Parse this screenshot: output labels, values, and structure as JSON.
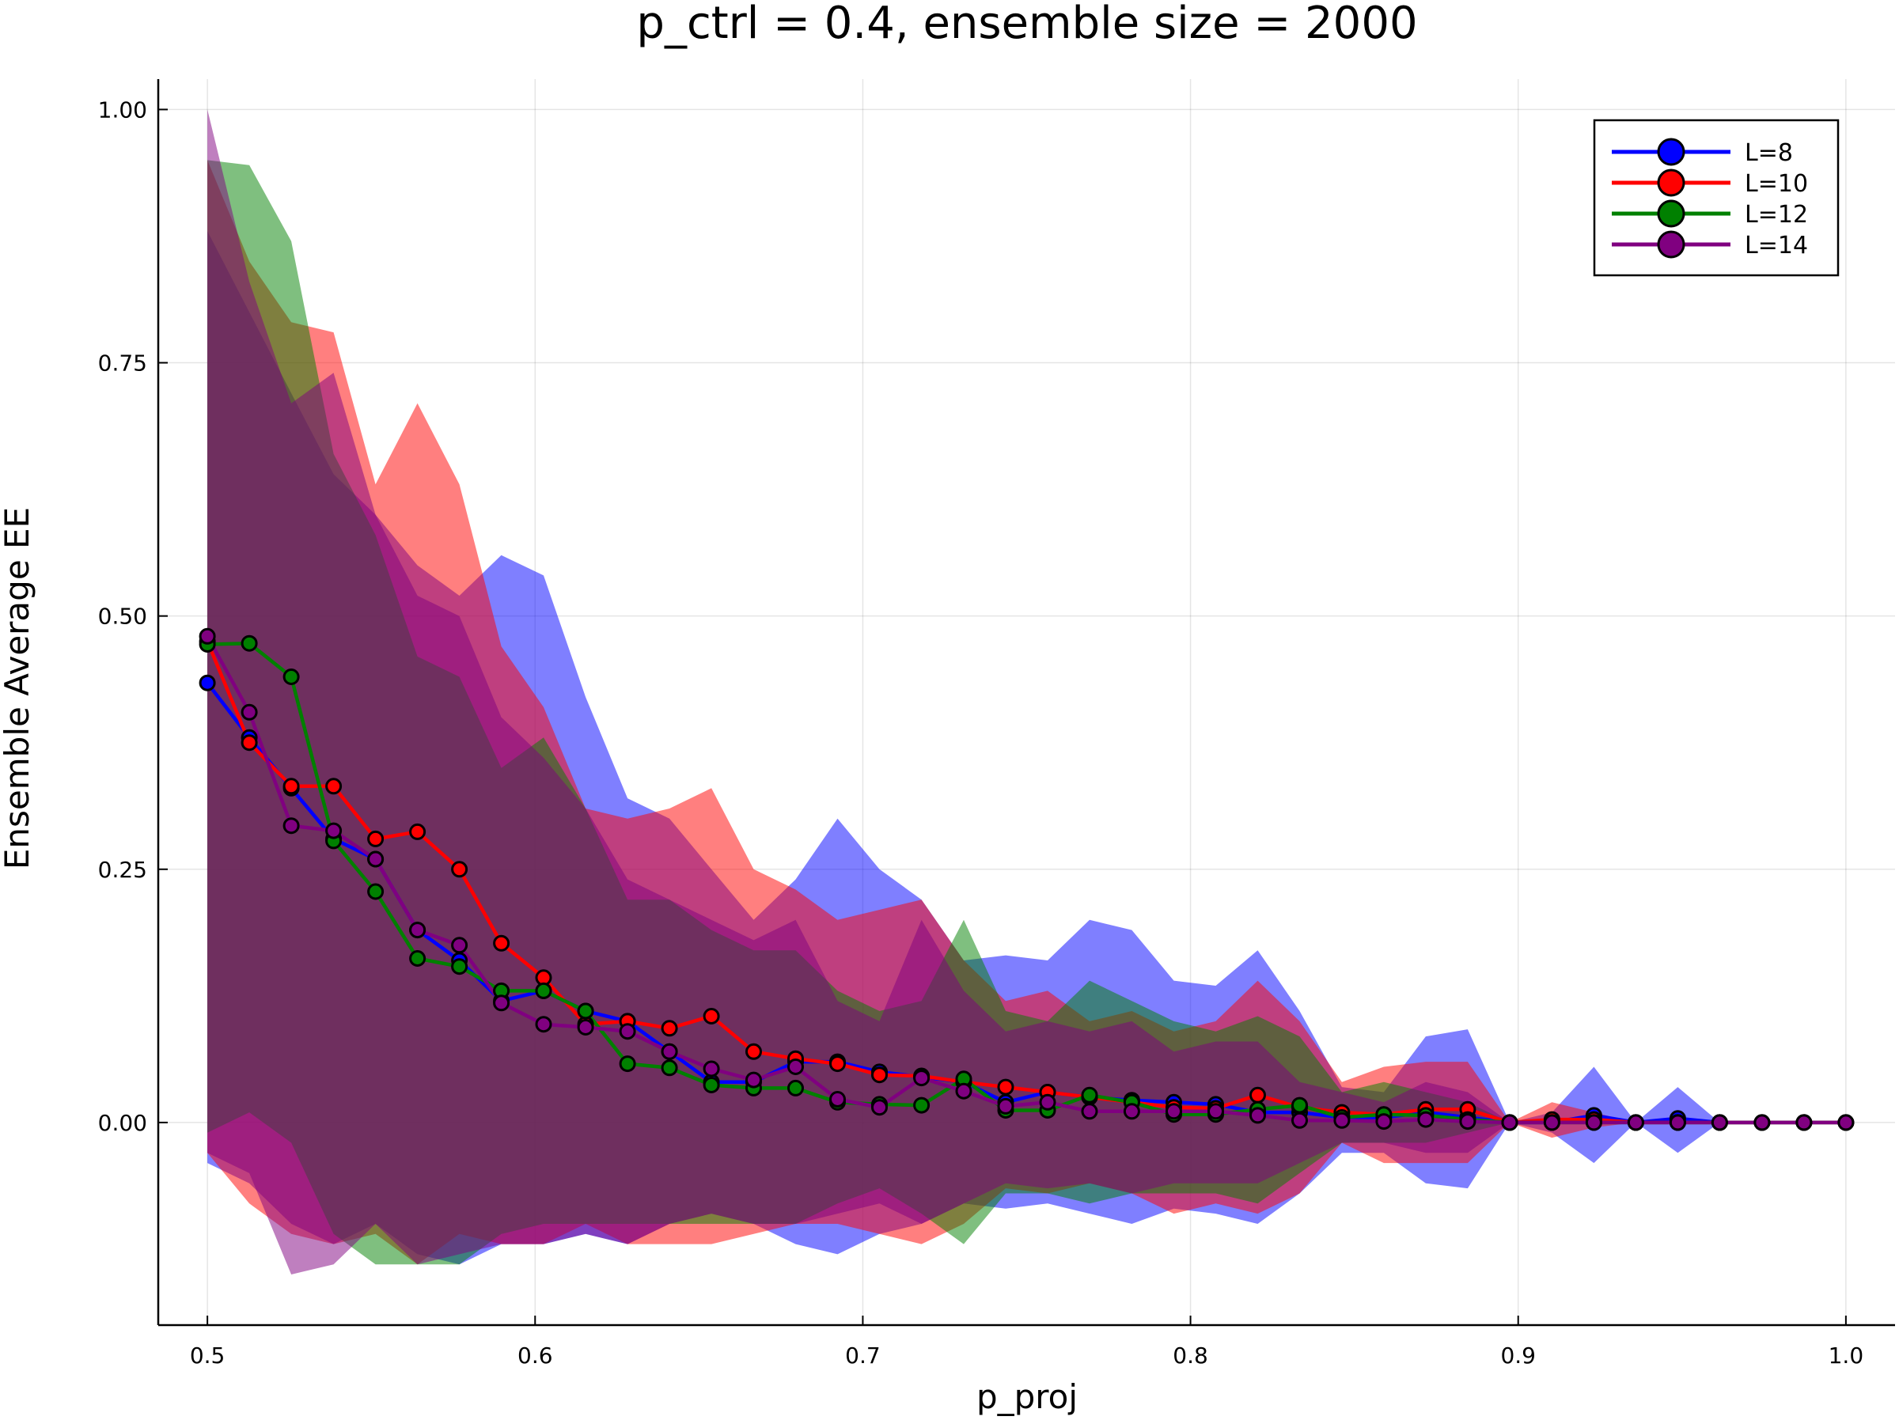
{
  "chart_data": {
    "type": "line",
    "title": "p_ctrl = 0.4, ensemble size = 2000",
    "xlabel": "p_proj",
    "ylabel": "Ensemble Average EE",
    "xlim": [
      0.485,
      1.015
    ],
    "ylim": [
      -0.2,
      1.03
    ],
    "x_ticks": [
      0.5,
      0.6,
      0.7,
      0.8,
      0.9,
      1.0
    ],
    "x_tick_labels": [
      "0.5",
      "0.6",
      "0.7",
      "0.8",
      "0.9",
      "1.0"
    ],
    "y_ticks": [
      0.0,
      0.25,
      0.5,
      0.75,
      1.0
    ],
    "y_tick_labels": [
      "0.00",
      "0.25",
      "0.50",
      "0.75",
      "1.00"
    ],
    "grid": true,
    "legend_position": "top-right",
    "x": [
      0.5,
      0.5128,
      0.5256,
      0.5385,
      0.5513,
      0.5641,
      0.5769,
      0.5897,
      0.6026,
      0.6154,
      0.6282,
      0.641,
      0.6538,
      0.6667,
      0.6795,
      0.6923,
      0.7051,
      0.7179,
      0.7308,
      0.7436,
      0.7564,
      0.7692,
      0.7821,
      0.7949,
      0.8077,
      0.8205,
      0.8333,
      0.8462,
      0.859,
      0.8718,
      0.8846,
      0.8974,
      0.9103,
      0.9231,
      0.9359,
      0.9487,
      0.9615,
      0.9744,
      0.9872,
      1.0
    ],
    "series": [
      {
        "name": "L=8",
        "color": "#0000ff",
        "values": [
          0.434,
          0.38,
          0.33,
          0.28,
          0.26,
          0.19,
          0.16,
          0.12,
          0.13,
          0.11,
          0.1,
          0.07,
          0.04,
          0.04,
          0.06,
          0.06,
          0.05,
          0.045,
          0.04,
          0.02,
          0.03,
          0.025,
          0.022,
          0.02,
          0.018,
          0.01,
          0.01,
          0.005,
          0.005,
          0.01,
          0.005,
          0.0,
          0.0,
          0.007,
          0.0,
          0.004,
          0.0,
          0.0,
          0.0,
          0.0
        ],
        "upper": [
          0.88,
          0.8,
          0.72,
          0.64,
          0.6,
          0.55,
          0.52,
          0.56,
          0.54,
          0.42,
          0.32,
          0.3,
          0.25,
          0.2,
          0.24,
          0.3,
          0.25,
          0.22,
          0.16,
          0.165,
          0.16,
          0.2,
          0.19,
          0.14,
          0.135,
          0.17,
          0.11,
          0.035,
          0.03,
          0.085,
          0.092,
          0.0,
          0.01,
          0.055,
          0.0,
          0.035,
          0.0,
          0.0,
          0.0,
          0.0
        ],
        "lower": [
          -0.04,
          -0.06,
          -0.1,
          -0.12,
          -0.1,
          -0.13,
          -0.14,
          -0.12,
          -0.12,
          -0.11,
          -0.12,
          -0.1,
          -0.09,
          -0.1,
          -0.12,
          -0.13,
          -0.11,
          -0.1,
          -0.08,
          -0.085,
          -0.08,
          -0.09,
          -0.1,
          -0.085,
          -0.09,
          -0.1,
          -0.07,
          -0.03,
          -0.03,
          -0.06,
          -0.065,
          0.0,
          -0.01,
          -0.04,
          0.0,
          -0.03,
          0.0,
          0.0,
          0.0,
          0.0
        ]
      },
      {
        "name": "L=10",
        "color": "#ff0000",
        "values": [
          0.475,
          0.375,
          0.332,
          0.332,
          0.28,
          0.287,
          0.25,
          0.177,
          0.143,
          0.097,
          0.1,
          0.093,
          0.105,
          0.07,
          0.063,
          0.058,
          0.047,
          0.046,
          0.04,
          0.035,
          0.03,
          0.025,
          0.02,
          0.015,
          0.014,
          0.027,
          0.015,
          0.01,
          0.008,
          0.013,
          0.013,
          0.0,
          0.003,
          0.003,
          0.0,
          0.0,
          0.0,
          0.0,
          0.0,
          0.0
        ],
        "upper": [
          0.95,
          0.85,
          0.79,
          0.78,
          0.63,
          0.71,
          0.63,
          0.47,
          0.41,
          0.31,
          0.3,
          0.31,
          0.33,
          0.25,
          0.23,
          0.2,
          0.21,
          0.22,
          0.16,
          0.12,
          0.13,
          0.1,
          0.11,
          0.09,
          0.1,
          0.14,
          0.1,
          0.04,
          0.055,
          0.06,
          0.06,
          0.0,
          0.02,
          0.01,
          0.0,
          0.0,
          0.0,
          0.0,
          0.0,
          0.0
        ],
        "lower": [
          -0.03,
          -0.08,
          -0.11,
          -0.12,
          -0.11,
          -0.14,
          -0.11,
          -0.12,
          -0.12,
          -0.1,
          -0.12,
          -0.12,
          -0.12,
          -0.11,
          -0.1,
          -0.1,
          -0.11,
          -0.12,
          -0.1,
          -0.065,
          -0.07,
          -0.06,
          -0.07,
          -0.09,
          -0.08,
          -0.09,
          -0.07,
          -0.02,
          -0.04,
          -0.04,
          -0.04,
          0.0,
          -0.015,
          -0.005,
          0.0,
          0.0,
          0.0,
          0.0,
          0.0,
          0.0
        ]
      },
      {
        "name": "L=12",
        "color": "#008000",
        "values": [
          0.472,
          0.473,
          0.44,
          0.278,
          0.228,
          0.162,
          0.154,
          0.13,
          0.13,
          0.11,
          0.058,
          0.054,
          0.037,
          0.034,
          0.034,
          0.02,
          0.018,
          0.017,
          0.043,
          0.012,
          0.012,
          0.027,
          0.02,
          0.008,
          0.008,
          0.013,
          0.017,
          0.005,
          0.008,
          0.007,
          0.003,
          0.0,
          0.0,
          0.0,
          0.0,
          0.0,
          0.0,
          0.0,
          0.0,
          0.0
        ],
        "upper": [
          0.95,
          0.945,
          0.87,
          0.66,
          0.58,
          0.46,
          0.44,
          0.35,
          0.38,
          0.31,
          0.22,
          0.22,
          0.19,
          0.17,
          0.17,
          0.13,
          0.11,
          0.12,
          0.2,
          0.11,
          0.1,
          0.14,
          0.12,
          0.1,
          0.09,
          0.105,
          0.085,
          0.03,
          0.04,
          0.03,
          0.02,
          0.0,
          0.0,
          0.0,
          0.0,
          0.0,
          0.0,
          0.0,
          0.0,
          0.0
        ],
        "lower": [
          -0.01,
          0.01,
          -0.02,
          -0.11,
          -0.14,
          -0.14,
          -0.14,
          -0.11,
          -0.1,
          -0.1,
          -0.1,
          -0.1,
          -0.1,
          -0.1,
          -0.1,
          -0.08,
          -0.065,
          -0.09,
          -0.12,
          -0.07,
          -0.07,
          -0.08,
          -0.07,
          -0.07,
          -0.07,
          -0.08,
          -0.05,
          -0.02,
          -0.02,
          -0.02,
          -0.01,
          0.0,
          0.0,
          0.0,
          0.0,
          0.0,
          0.0,
          0.0,
          0.0,
          0.0
        ]
      },
      {
        "name": "L=14",
        "color": "#800080",
        "values": [
          0.48,
          0.405,
          0.293,
          0.288,
          0.26,
          0.19,
          0.175,
          0.118,
          0.097,
          0.094,
          0.09,
          0.07,
          0.053,
          0.042,
          0.055,
          0.023,
          0.015,
          0.044,
          0.031,
          0.016,
          0.02,
          0.011,
          0.011,
          0.011,
          0.011,
          0.007,
          0.002,
          0.002,
          0.001,
          0.003,
          0.001,
          0.0,
          0.0,
          0.0,
          0.0,
          0.0,
          0.0,
          0.0,
          0.0,
          0.0
        ],
        "upper": [
          1.0,
          0.83,
          0.71,
          0.74,
          0.6,
          0.52,
          0.5,
          0.4,
          0.36,
          0.31,
          0.24,
          0.22,
          0.2,
          0.18,
          0.2,
          0.12,
          0.1,
          0.2,
          0.13,
          0.09,
          0.1,
          0.09,
          0.1,
          0.07,
          0.08,
          0.08,
          0.04,
          0.03,
          0.02,
          0.04,
          0.03,
          0.0,
          0.0,
          0.0,
          0.0,
          0.0,
          0.0,
          0.0,
          0.0,
          0.0
        ],
        "lower": [
          -0.03,
          -0.05,
          -0.15,
          -0.14,
          -0.1,
          -0.14,
          -0.13,
          -0.12,
          -0.12,
          -0.11,
          -0.12,
          -0.1,
          -0.09,
          -0.1,
          -0.1,
          -0.09,
          -0.08,
          -0.1,
          -0.08,
          -0.06,
          -0.065,
          -0.06,
          -0.07,
          -0.06,
          -0.06,
          -0.06,
          -0.04,
          -0.02,
          -0.02,
          -0.03,
          -0.03,
          0.0,
          0.0,
          0.0,
          0.0,
          0.0,
          0.0,
          0.0,
          0.0,
          0.0
        ]
      }
    ]
  }
}
